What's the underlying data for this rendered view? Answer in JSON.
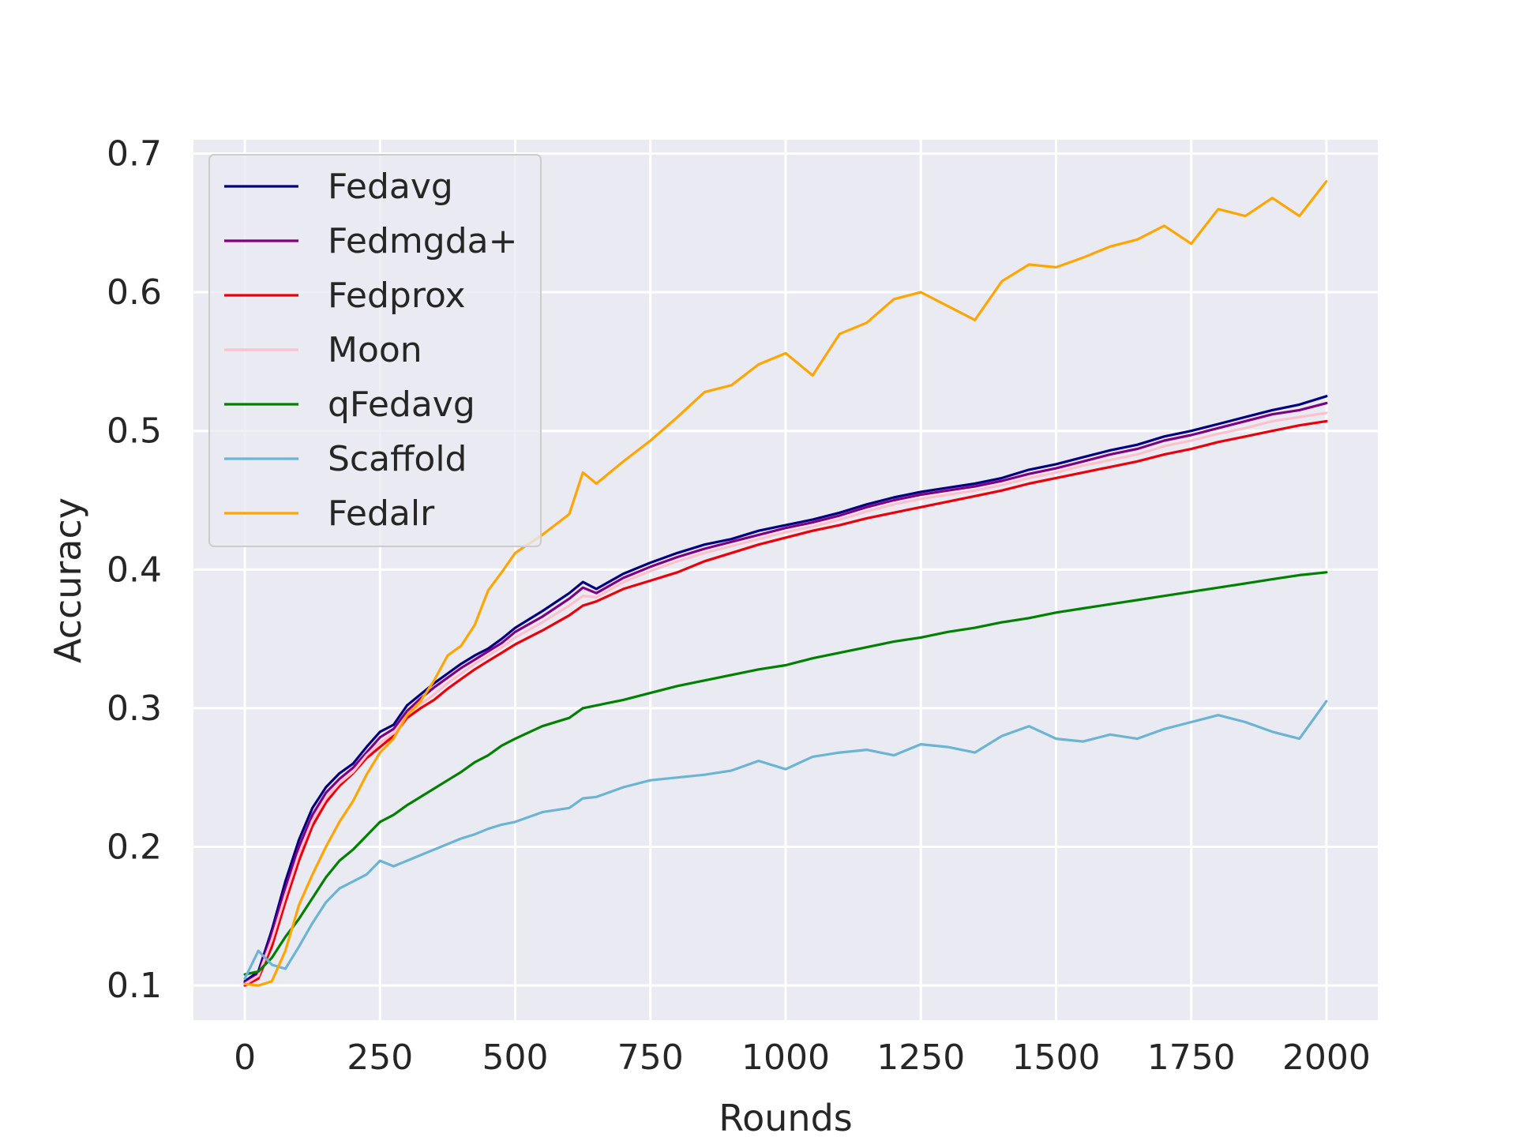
{
  "chart_data": {
    "type": "line",
    "title": "",
    "xlabel": "Rounds",
    "ylabel": "Accuracy",
    "xlim": [
      -95,
      2095
    ],
    "ylim": [
      0.075,
      0.71
    ],
    "x_ticks": [
      0,
      250,
      500,
      750,
      1000,
      1250,
      1500,
      1750,
      2000
    ],
    "x_tick_labels": [
      "0",
      "250",
      "500",
      "750",
      "1000",
      "1250",
      "1500",
      "1750",
      "2000"
    ],
    "y_ticks": [
      0.1,
      0.2,
      0.3,
      0.4,
      0.5,
      0.6,
      0.7
    ],
    "y_tick_labels": [
      "0.1",
      "0.2",
      "0.3",
      "0.4",
      "0.5",
      "0.6",
      "0.7"
    ],
    "grid": true,
    "legend_position": "top-left",
    "series": [
      {
        "name": "Fedavg",
        "color": "#000080",
        "x": [
          0,
          25,
          50,
          75,
          100,
          125,
          150,
          175,
          200,
          225,
          250,
          275,
          300,
          325,
          350,
          375,
          400,
          425,
          450,
          475,
          500,
          550,
          600,
          625,
          650,
          700,
          750,
          800,
          850,
          900,
          950,
          1000,
          1050,
          1100,
          1150,
          1200,
          1250,
          1300,
          1350,
          1400,
          1450,
          1500,
          1550,
          1600,
          1650,
          1700,
          1750,
          1800,
          1850,
          1900,
          1950,
          2000
        ],
        "y": [
          0.103,
          0.11,
          0.14,
          0.175,
          0.205,
          0.228,
          0.243,
          0.253,
          0.26,
          0.272,
          0.283,
          0.288,
          0.302,
          0.31,
          0.318,
          0.325,
          0.332,
          0.338,
          0.343,
          0.35,
          0.358,
          0.37,
          0.383,
          0.391,
          0.386,
          0.397,
          0.405,
          0.412,
          0.418,
          0.422,
          0.428,
          0.432,
          0.436,
          0.441,
          0.447,
          0.452,
          0.456,
          0.459,
          0.462,
          0.466,
          0.472,
          0.476,
          0.481,
          0.486,
          0.49,
          0.496,
          0.5,
          0.505,
          0.51,
          0.515,
          0.519,
          0.525
        ]
      },
      {
        "name": "Fedmgda+",
        "color": "#800080",
        "x": [
          0,
          25,
          50,
          75,
          100,
          125,
          150,
          175,
          200,
          225,
          250,
          275,
          300,
          325,
          350,
          375,
          400,
          425,
          450,
          475,
          500,
          550,
          600,
          625,
          650,
          700,
          750,
          800,
          850,
          900,
          950,
          1000,
          1050,
          1100,
          1150,
          1200,
          1250,
          1300,
          1350,
          1400,
          1450,
          1500,
          1550,
          1600,
          1650,
          1700,
          1750,
          1800,
          1850,
          1900,
          1950,
          2000
        ],
        "y": [
          0.102,
          0.108,
          0.137,
          0.17,
          0.2,
          0.223,
          0.239,
          0.249,
          0.257,
          0.268,
          0.279,
          0.285,
          0.298,
          0.307,
          0.315,
          0.322,
          0.329,
          0.335,
          0.341,
          0.347,
          0.355,
          0.366,
          0.379,
          0.387,
          0.383,
          0.394,
          0.402,
          0.409,
          0.415,
          0.42,
          0.425,
          0.43,
          0.434,
          0.439,
          0.445,
          0.45,
          0.454,
          0.457,
          0.46,
          0.464,
          0.469,
          0.473,
          0.478,
          0.483,
          0.487,
          0.493,
          0.497,
          0.502,
          0.507,
          0.512,
          0.515,
          0.52
        ]
      },
      {
        "name": "Fedprox",
        "color": "#e8000b",
        "x": [
          0,
          25,
          50,
          75,
          100,
          125,
          150,
          175,
          200,
          225,
          250,
          275,
          300,
          325,
          350,
          375,
          400,
          425,
          450,
          475,
          500,
          550,
          600,
          625,
          650,
          700,
          750,
          800,
          850,
          900,
          950,
          1000,
          1050,
          1100,
          1150,
          1200,
          1250,
          1300,
          1350,
          1400,
          1450,
          1500,
          1550,
          1600,
          1650,
          1700,
          1750,
          1800,
          1850,
          1900,
          1950,
          2000
        ],
        "y": [
          0.1,
          0.105,
          0.128,
          0.16,
          0.19,
          0.215,
          0.232,
          0.244,
          0.253,
          0.264,
          0.272,
          0.28,
          0.293,
          0.3,
          0.306,
          0.314,
          0.321,
          0.328,
          0.334,
          0.34,
          0.346,
          0.356,
          0.367,
          0.374,
          0.377,
          0.386,
          0.392,
          0.398,
          0.406,
          0.412,
          0.418,
          0.423,
          0.428,
          0.432,
          0.437,
          0.441,
          0.445,
          0.449,
          0.453,
          0.457,
          0.462,
          0.466,
          0.47,
          0.474,
          0.478,
          0.483,
          0.487,
          0.492,
          0.496,
          0.5,
          0.504,
          0.507
        ]
      },
      {
        "name": "Moon",
        "color": "#ffc0cb",
        "x": [
          0,
          25,
          50,
          75,
          100,
          125,
          150,
          175,
          200,
          225,
          250,
          275,
          300,
          325,
          350,
          375,
          400,
          425,
          450,
          475,
          500,
          550,
          600,
          625,
          650,
          700,
          750,
          800,
          850,
          900,
          950,
          1000,
          1050,
          1100,
          1150,
          1200,
          1250,
          1300,
          1350,
          1400,
          1450,
          1500,
          1550,
          1600,
          1650,
          1700,
          1750,
          1800,
          1850,
          1900,
          1950,
          2000
        ],
        "y": [
          0.101,
          0.107,
          0.133,
          0.165,
          0.195,
          0.219,
          0.235,
          0.246,
          0.254,
          0.266,
          0.275,
          0.282,
          0.295,
          0.303,
          0.31,
          0.318,
          0.325,
          0.332,
          0.338,
          0.344,
          0.351,
          0.362,
          0.374,
          0.381,
          0.38,
          0.391,
          0.399,
          0.406,
          0.412,
          0.417,
          0.422,
          0.427,
          0.431,
          0.436,
          0.442,
          0.447,
          0.451,
          0.454,
          0.457,
          0.461,
          0.466,
          0.47,
          0.475,
          0.479,
          0.483,
          0.489,
          0.493,
          0.498,
          0.502,
          0.507,
          0.51,
          0.513
        ]
      },
      {
        "name": "qFedavg",
        "color": "#008000",
        "x": [
          0,
          25,
          50,
          75,
          100,
          125,
          150,
          175,
          200,
          225,
          250,
          275,
          300,
          325,
          350,
          375,
          400,
          425,
          450,
          475,
          500,
          550,
          600,
          625,
          650,
          700,
          750,
          800,
          850,
          900,
          950,
          1000,
          1050,
          1100,
          1150,
          1200,
          1250,
          1300,
          1350,
          1400,
          1450,
          1500,
          1550,
          1600,
          1650,
          1700,
          1750,
          1800,
          1850,
          1900,
          1950,
          2000
        ],
        "y": [
          0.108,
          0.11,
          0.12,
          0.135,
          0.148,
          0.163,
          0.178,
          0.19,
          0.198,
          0.208,
          0.218,
          0.223,
          0.23,
          0.236,
          0.242,
          0.248,
          0.254,
          0.261,
          0.266,
          0.273,
          0.278,
          0.287,
          0.293,
          0.3,
          0.302,
          0.306,
          0.311,
          0.316,
          0.32,
          0.324,
          0.328,
          0.331,
          0.336,
          0.34,
          0.344,
          0.348,
          0.351,
          0.355,
          0.358,
          0.362,
          0.365,
          0.369,
          0.372,
          0.375,
          0.378,
          0.381,
          0.384,
          0.387,
          0.39,
          0.393,
          0.396,
          0.398
        ]
      },
      {
        "name": "Scaffold",
        "color": "#6cb4d4",
        "x": [
          0,
          25,
          50,
          75,
          100,
          125,
          150,
          175,
          200,
          225,
          250,
          275,
          300,
          325,
          350,
          375,
          400,
          425,
          450,
          475,
          500,
          550,
          600,
          625,
          650,
          700,
          750,
          800,
          850,
          900,
          950,
          1000,
          1050,
          1100,
          1150,
          1200,
          1250,
          1300,
          1350,
          1400,
          1450,
          1500,
          1550,
          1600,
          1650,
          1700,
          1750,
          1800,
          1850,
          1900,
          1950,
          2000
        ],
        "y": [
          0.105,
          0.125,
          0.115,
          0.112,
          0.128,
          0.145,
          0.16,
          0.17,
          0.175,
          0.18,
          0.19,
          0.186,
          0.19,
          0.194,
          0.198,
          0.202,
          0.206,
          0.209,
          0.213,
          0.216,
          0.218,
          0.225,
          0.228,
          0.235,
          0.236,
          0.243,
          0.248,
          0.25,
          0.252,
          0.255,
          0.262,
          0.256,
          0.265,
          0.268,
          0.27,
          0.266,
          0.274,
          0.272,
          0.268,
          0.28,
          0.287,
          0.278,
          0.276,
          0.281,
          0.278,
          0.285,
          0.29,
          0.295,
          0.29,
          0.283,
          0.278,
          0.305
        ]
      },
      {
        "name": "Fedalr",
        "color": "#ffa500",
        "x": [
          0,
          25,
          50,
          75,
          100,
          125,
          150,
          175,
          200,
          225,
          250,
          275,
          300,
          325,
          350,
          375,
          400,
          425,
          450,
          475,
          500,
          550,
          600,
          625,
          650,
          700,
          750,
          800,
          850,
          900,
          950,
          1000,
          1050,
          1100,
          1150,
          1200,
          1250,
          1300,
          1350,
          1400,
          1450,
          1500,
          1550,
          1600,
          1650,
          1700,
          1750,
          1800,
          1850,
          1900,
          1950,
          2000
        ],
        "y": [
          0.101,
          0.1,
          0.103,
          0.125,
          0.158,
          0.18,
          0.2,
          0.218,
          0.233,
          0.252,
          0.268,
          0.278,
          0.295,
          0.305,
          0.32,
          0.338,
          0.345,
          0.36,
          0.385,
          0.398,
          0.412,
          0.425,
          0.44,
          0.47,
          0.462,
          0.478,
          0.493,
          0.51,
          0.528,
          0.533,
          0.548,
          0.556,
          0.54,
          0.57,
          0.578,
          0.595,
          0.6,
          0.59,
          0.58,
          0.608,
          0.62,
          0.618,
          0.625,
          0.633,
          0.638,
          0.648,
          0.635,
          0.66,
          0.655,
          0.668,
          0.655,
          0.68
        ]
      }
    ]
  }
}
